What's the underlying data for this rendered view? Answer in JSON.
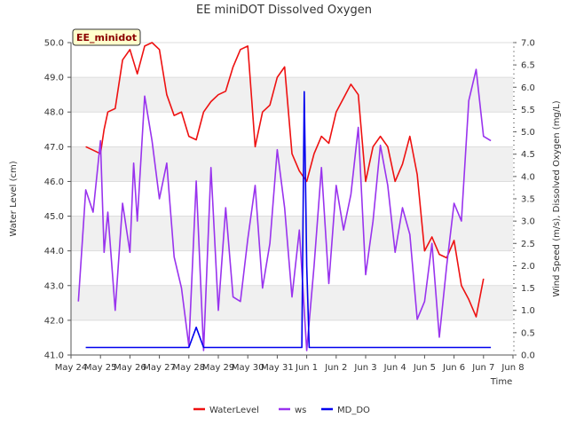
{
  "chart_data": {
    "type": "line",
    "title": "EE miniDOT Dissolved Oxygen",
    "badge": "EE_minidot",
    "xlabel": "Time",
    "ylabel_left": "Water Level (cm)",
    "ylabel_right": "Wind Speed (m/s), Dissolved Oxygen (mg/L)",
    "x_ticks": [
      "May 24",
      "May 25",
      "May 26",
      "May 27",
      "May 28",
      "May 29",
      "May 30",
      "May 31",
      "Jun 1",
      "Jun 2",
      "Jun 3",
      "Jun 4",
      "Jun 5",
      "Jun 6",
      "Jun 7",
      "Jun 8"
    ],
    "xlim": [
      "2024-05-24",
      "2024-06-08"
    ],
    "ylim_left": [
      41.0,
      50.0
    ],
    "ylim_right": [
      0.0,
      7.0
    ],
    "y_ticks_left": [
      "41.0",
      "42.0",
      "43.0",
      "44.0",
      "45.0",
      "46.0",
      "47.0",
      "48.0",
      "49.0",
      "50.0"
    ],
    "y_ticks_right": [
      "0.0",
      "0.5",
      "1.0",
      "1.5",
      "2.0",
      "2.5",
      "3.0",
      "3.5",
      "4.0",
      "4.5",
      "5.0",
      "5.5",
      "6.0",
      "6.5",
      "7.0"
    ],
    "legend_position": "bottom",
    "series": [
      {
        "name": "WaterLevel",
        "axis": "left",
        "color": "#ee1111",
        "x": [
          "2024-05-24 12:00",
          "2024-05-24 18:00",
          "2024-05-25 00:00",
          "2024-05-25 03:00",
          "2024-05-25 06:00",
          "2024-05-25 12:00",
          "2024-05-25 18:00",
          "2024-05-26 00:00",
          "2024-05-26 06:00",
          "2024-05-26 12:00",
          "2024-05-26 18:00",
          "2024-05-27 00:00",
          "2024-05-27 06:00",
          "2024-05-27 12:00",
          "2024-05-27 18:00",
          "2024-05-28 00:00",
          "2024-05-28 06:00",
          "2024-05-28 12:00",
          "2024-05-28 18:00",
          "2024-05-29 00:00",
          "2024-05-29 06:00",
          "2024-05-29 12:00",
          "2024-05-29 18:00",
          "2024-05-30 00:00",
          "2024-05-30 06:00",
          "2024-05-30 12:00",
          "2024-05-30 18:00",
          "2024-05-31 00:00",
          "2024-05-31 06:00",
          "2024-05-31 12:00",
          "2024-05-31 18:00",
          "2024-06-01 00:00",
          "2024-06-01 06:00",
          "2024-06-01 12:00",
          "2024-06-01 18:00",
          "2024-06-02 00:00",
          "2024-06-02 06:00",
          "2024-06-02 12:00",
          "2024-06-02 18:00",
          "2024-06-03 00:00",
          "2024-06-03 06:00",
          "2024-06-03 12:00",
          "2024-06-03 18:00",
          "2024-06-04 00:00",
          "2024-06-04 06:00",
          "2024-06-04 12:00",
          "2024-06-04 18:00",
          "2024-06-05 00:00",
          "2024-06-05 06:00",
          "2024-06-05 12:00",
          "2024-06-05 18:00",
          "2024-06-06 00:00",
          "2024-06-06 06:00",
          "2024-06-06 12:00",
          "2024-06-06 18:00",
          "2024-06-07 00:00"
        ],
        "y": [
          47.0,
          46.9,
          46.8,
          47.5,
          48.0,
          48.1,
          49.5,
          49.8,
          49.1,
          49.9,
          50.0,
          49.8,
          48.5,
          47.9,
          48.0,
          47.3,
          47.2,
          48.0,
          48.3,
          48.5,
          48.6,
          49.3,
          49.8,
          49.9,
          47.0,
          48.0,
          48.2,
          49.0,
          49.3,
          46.8,
          46.3,
          46.0,
          46.8,
          47.3,
          47.1,
          48.0,
          48.4,
          48.8,
          48.5,
          46.0,
          47.0,
          47.3,
          47.0,
          46.0,
          46.5,
          47.3,
          46.2,
          44.0,
          44.4,
          43.9,
          43.8,
          44.3,
          43.0,
          42.6,
          42.1,
          43.2
        ]
      },
      {
        "name": "ws",
        "axis": "right",
        "color": "#9933ee",
        "x": [
          "2024-05-24 06:00",
          "2024-05-24 12:00",
          "2024-05-24 18:00",
          "2024-05-25 00:00",
          "2024-05-25 03:00",
          "2024-05-25 06:00",
          "2024-05-25 12:00",
          "2024-05-25 18:00",
          "2024-05-26 00:00",
          "2024-05-26 03:00",
          "2024-05-26 06:00",
          "2024-05-26 12:00",
          "2024-05-26 18:00",
          "2024-05-27 00:00",
          "2024-05-27 06:00",
          "2024-05-27 12:00",
          "2024-05-27 18:00",
          "2024-05-28 00:00",
          "2024-05-28 06:00",
          "2024-05-28 12:00",
          "2024-05-28 18:00",
          "2024-05-29 00:00",
          "2024-05-29 06:00",
          "2024-05-29 12:00",
          "2024-05-29 18:00",
          "2024-05-30 00:00",
          "2024-05-30 06:00",
          "2024-05-30 12:00",
          "2024-05-30 18:00",
          "2024-05-31 00:00",
          "2024-05-31 06:00",
          "2024-05-31 12:00",
          "2024-05-31 18:00",
          "2024-06-01 00:00",
          "2024-06-01 06:00",
          "2024-06-01 12:00",
          "2024-06-01 18:00",
          "2024-06-02 00:00",
          "2024-06-02 06:00",
          "2024-06-02 12:00",
          "2024-06-02 18:00",
          "2024-06-03 00:00",
          "2024-06-03 06:00",
          "2024-06-03 12:00",
          "2024-06-03 18:00",
          "2024-06-04 00:00",
          "2024-06-04 06:00",
          "2024-06-04 12:00",
          "2024-06-04 18:00",
          "2024-06-05 00:00",
          "2024-06-05 06:00",
          "2024-06-05 12:00",
          "2024-06-05 18:00",
          "2024-06-06 00:00",
          "2024-06-06 06:00",
          "2024-06-06 12:00",
          "2024-06-06 18:00",
          "2024-06-07 00:00",
          "2024-06-07 06:00"
        ],
        "y": [
          1.2,
          3.7,
          3.2,
          4.8,
          2.3,
          3.2,
          1.0,
          3.4,
          2.3,
          4.3,
          3.0,
          5.8,
          4.8,
          3.5,
          4.3,
          2.2,
          1.5,
          0.2,
          3.9,
          0.1,
          4.2,
          1.0,
          3.3,
          1.3,
          1.2,
          2.6,
          3.8,
          1.5,
          2.5,
          4.6,
          3.3,
          1.3,
          2.8,
          0.1,
          2.0,
          4.2,
          1.6,
          3.8,
          2.8,
          3.6,
          5.1,
          1.8,
          3.0,
          4.7,
          3.8,
          2.3,
          3.3,
          2.7,
          0.8,
          1.2,
          2.5,
          0.4,
          2.0,
          3.4,
          3.0,
          5.7,
          6.4,
          4.9,
          4.8
        ]
      },
      {
        "name": "MD_DO",
        "axis": "right",
        "color": "#0000ee",
        "x": [
          "2024-05-24 12:00",
          "2024-05-25 12:00",
          "2024-05-26 12:00",
          "2024-05-27 12:00",
          "2024-05-28 00:00",
          "2024-05-28 06:00",
          "2024-05-28 12:00",
          "2024-05-29 00:00",
          "2024-05-30 00:00",
          "2024-05-31 00:00",
          "2024-05-31 20:00",
          "2024-05-31 22:00",
          "2024-06-01 00:00",
          "2024-06-01 02:00",
          "2024-06-01 06:00",
          "2024-06-02 00:00",
          "2024-06-03 00:00",
          "2024-06-04 00:00",
          "2024-06-05 00:00",
          "2024-06-06 00:00",
          "2024-06-07 06:00"
        ],
        "y": [
          0.17,
          0.17,
          0.17,
          0.17,
          0.17,
          0.62,
          0.17,
          0.17,
          0.17,
          0.17,
          0.17,
          5.9,
          2.0,
          0.17,
          0.17,
          0.17,
          0.17,
          0.17,
          0.17,
          0.17,
          0.17
        ]
      }
    ]
  }
}
